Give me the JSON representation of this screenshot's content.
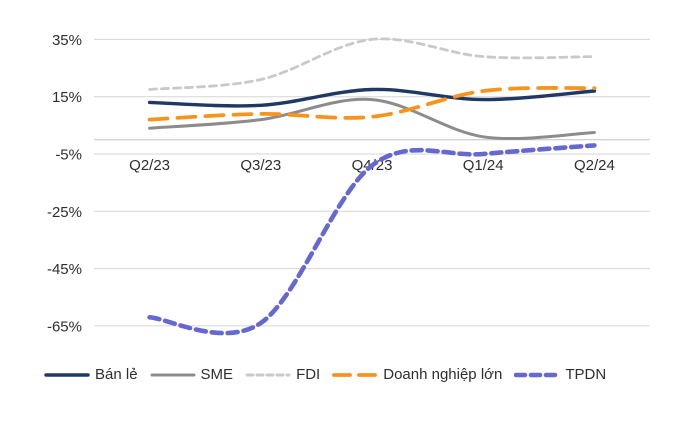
{
  "chart_data": {
    "type": "line",
    "title": "",
    "xlabel": "",
    "ylabel": "",
    "categories": [
      "Q2/23",
      "Q3/23",
      "Q4/23",
      "Q1/24",
      "Q2/24"
    ],
    "series": [
      {
        "name": "Bán lẻ",
        "values": [
          13,
          12,
          17.5,
          14,
          17
        ],
        "color": "#1f3864",
        "line_style": "solid",
        "dasharray": "",
        "width": 3.4,
        "legend_dash": ""
      },
      {
        "name": "SME",
        "values": [
          4,
          7,
          14,
          1,
          2.5
        ],
        "color": "#8c8c8c",
        "line_style": "solid",
        "dasharray": "",
        "width": 3.0,
        "legend_dash": ""
      },
      {
        "name": "FDI",
        "values": [
          17.5,
          21,
          35,
          29,
          29
        ],
        "color": "#c9c9c9",
        "line_style": "dashed",
        "dasharray": "7 5",
        "width": 2.8,
        "legend_dash": "6 4"
      },
      {
        "name": "Doanh nghiệp lớn",
        "values": [
          7,
          9,
          8,
          17,
          18
        ],
        "color": "#f7941e",
        "line_style": "dashed",
        "dasharray": "18 10",
        "width": 3.8,
        "legend_dash": "16 9"
      },
      {
        "name": "TPDN",
        "values": [
          -62,
          -64,
          -9,
          -5,
          -2
        ],
        "color": "#6568cf",
        "line_style": "dashed",
        "dasharray": "10 6",
        "width": 4.6,
        "legend_dash": "9 6"
      }
    ],
    "yticks": [
      35,
      15,
      -5,
      -25,
      -45,
      -65
    ],
    "ytick_labels": [
      "35%",
      "15%",
      "-5%",
      "-25%",
      "-45%",
      "-65%"
    ],
    "ylim": [
      -72,
      42
    ],
    "grid": true,
    "zero_axis_line": true,
    "smoothed_lines": true,
    "legend_position": "bottom",
    "colors": {
      "background": "#ffffff",
      "gridline": "#d6d6d6",
      "zero_axis": "#c2c2c2",
      "tick_text": "#2e2e2e"
    }
  }
}
